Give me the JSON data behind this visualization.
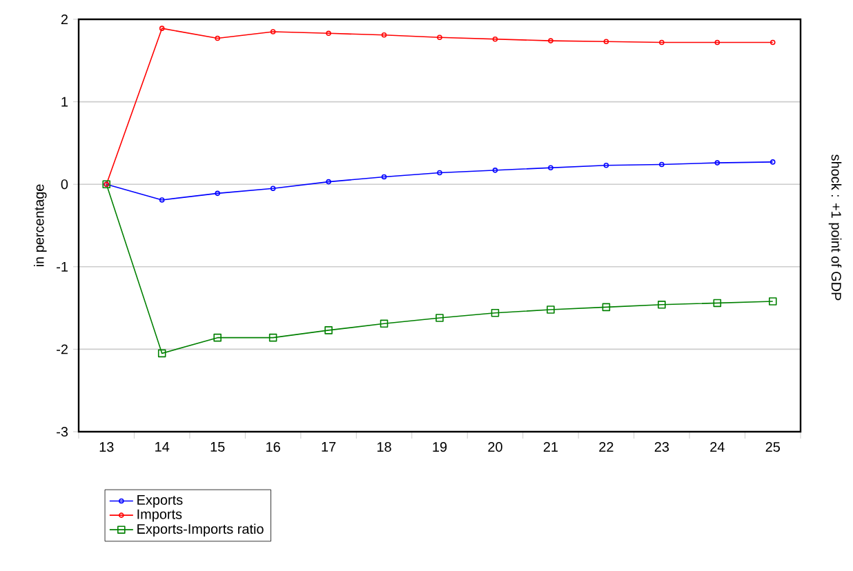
{
  "chart_data": {
    "type": "line",
    "ylabel": "in percentage",
    "categories": [
      "13",
      "14",
      "15",
      "16",
      "17",
      "18",
      "19",
      "20",
      "21",
      "22",
      "23",
      "24",
      "25"
    ],
    "series": [
      {
        "name": "Exports",
        "color": "#0000ff",
        "marker": "circle",
        "values": [
          0,
          -0.19,
          -0.11,
          -0.05,
          0.03,
          0.09,
          0.14,
          0.17,
          0.2,
          0.23,
          0.24,
          0.26,
          0.27
        ]
      },
      {
        "name": "Imports",
        "color": "#ff0000",
        "marker": "circle",
        "values": [
          0,
          1.89,
          1.77,
          1.85,
          1.83,
          1.81,
          1.78,
          1.76,
          1.74,
          1.73,
          1.72,
          1.72,
          1.72
        ]
      },
      {
        "name": "Exports-Imports ratio",
        "color": "#008000",
        "marker": "square",
        "values": [
          0,
          -2.05,
          -1.86,
          -1.86,
          -1.77,
          -1.69,
          -1.62,
          -1.56,
          -1.52,
          -1.49,
          -1.46,
          -1.44,
          -1.42
        ]
      }
    ],
    "ylim": [
      -3,
      2
    ],
    "yticks": [
      -3,
      -2,
      -1,
      0,
      1,
      2
    ],
    "grid": "y",
    "legend": "bottom left",
    "annotations": [
      "shock : +1 point of GDP"
    ]
  }
}
